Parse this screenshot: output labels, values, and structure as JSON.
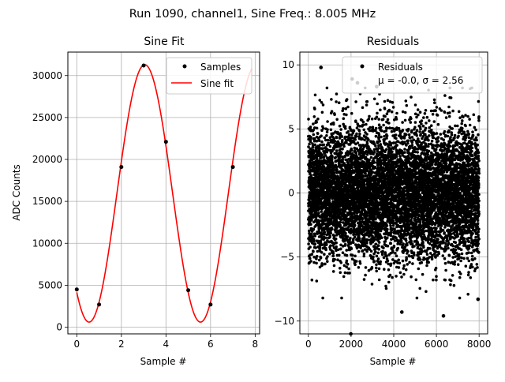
{
  "figure": {
    "suptitle": "Run 1090, channel1, Sine Freq.: 8.005 MHz"
  },
  "chart_data": [
    {
      "type": "line",
      "title": "Sine Fit",
      "xlabel": "Sample #",
      "ylabel": "ADC Counts",
      "xlim": [
        -0.4,
        8.2
      ],
      "ylim": [
        -800,
        32800
      ],
      "xticks": [
        0,
        2,
        4,
        6,
        8
      ],
      "yticks": [
        0,
        5000,
        10000,
        15000,
        20000,
        25000,
        30000
      ],
      "grid": true,
      "legend": {
        "placement": "top-right",
        "entries": [
          "Samples",
          "Sine fit"
        ]
      },
      "series": [
        {
          "name": "Samples",
          "kind": "scatter",
          "color": "#000000",
          "x": [
            0,
            1,
            2,
            3,
            4,
            5,
            6,
            7
          ],
          "y": [
            4500,
            2700,
            19100,
            31200,
            22100,
            4400,
            2700,
            19100
          ]
        },
        {
          "name": "Sine fit",
          "kind": "line",
          "color": "#ff0000",
          "model": {
            "offset": 15950,
            "amplitude": 15350,
            "period_samples": 4.9969,
            "peak_at_sample": 3.05
          },
          "x_range": [
            0,
            7.85
          ]
        }
      ]
    },
    {
      "type": "scatter",
      "title": "Residuals",
      "xlabel": "Sample #",
      "ylabel": "",
      "xlim": [
        -400,
        8400
      ],
      "ylim": [
        -11,
        11
      ],
      "xticks": [
        0,
        2000,
        4000,
        6000,
        8000
      ],
      "yticks": [
        -10,
        -5,
        0,
        5,
        10
      ],
      "grid": true,
      "legend": {
        "placement": "top-right",
        "entries": [
          "Residuals"
        ],
        "stat_line": "μ = -0.0, σ = 2.56"
      },
      "series": [
        {
          "name": "Residuals",
          "color": "#000000",
          "n_points": 8000,
          "mean": -0.0,
          "sigma": 2.56,
          "highlighted_points": [
            [
              590,
              9.8
            ],
            [
              1990,
              -11.0
            ],
            [
              4380,
              -9.3
            ],
            [
              6330,
              -9.6
            ],
            [
              7950,
              -8.3
            ],
            [
              2300,
              8.6
            ],
            [
              3200,
              8.3
            ],
            [
              2050,
              8.9
            ]
          ]
        }
      ]
    }
  ]
}
